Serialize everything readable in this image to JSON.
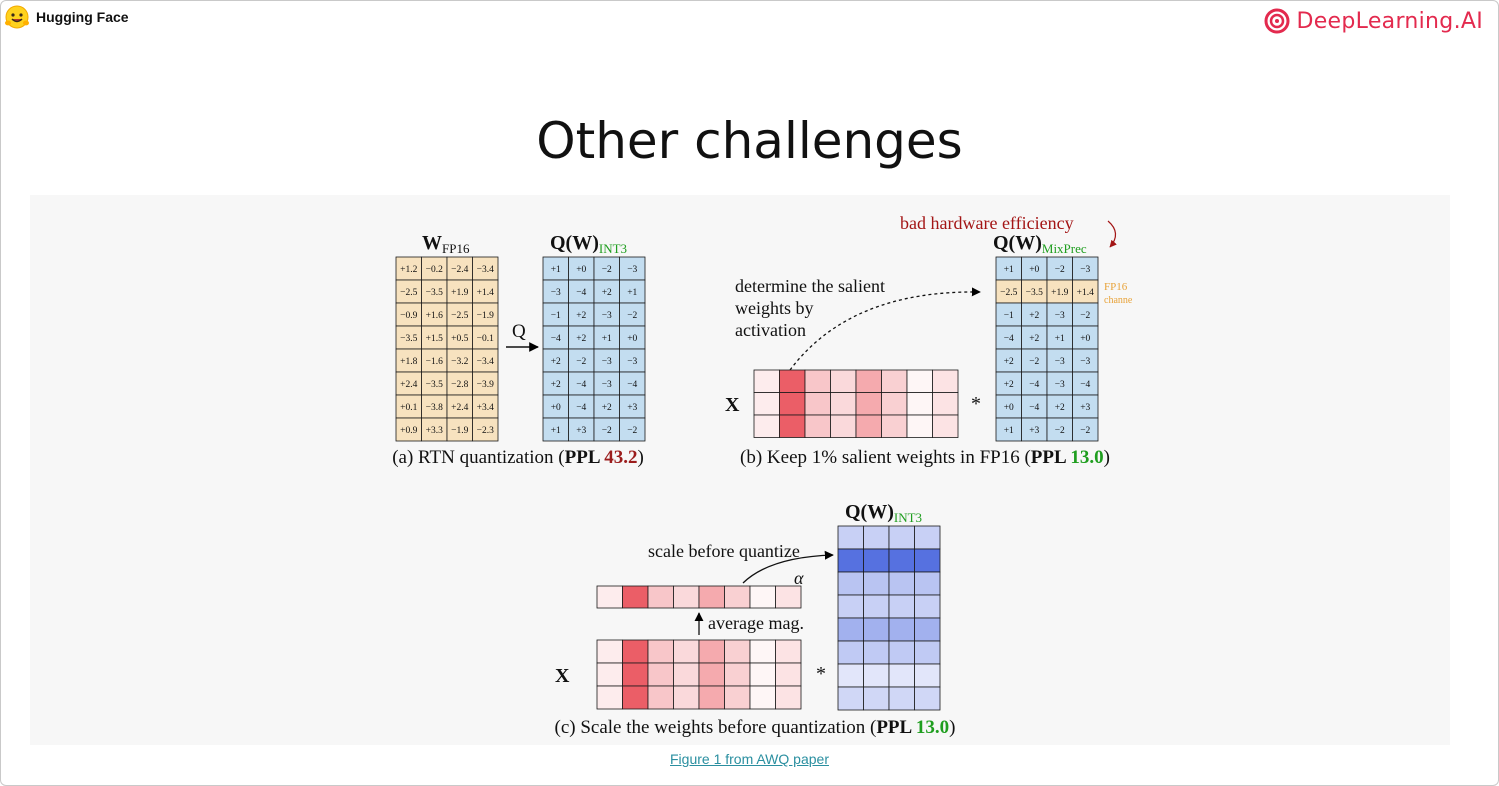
{
  "header": {
    "left_brand": "Hugging Face",
    "right_brand": "DeepLearning.AI",
    "right_brand_color": "#e32a4e"
  },
  "slide": {
    "title": "Other challenges",
    "source_link": "Figure 1 from AWQ paper"
  },
  "figure": {
    "panel_a": {
      "w_label": "W",
      "w_sub": "FP16",
      "q_label": "Q(W)",
      "q_sub": "INT3",
      "arrow_label": "Q",
      "fp16_matrix": [
        [
          "+1.2",
          "−0.2",
          "−2.4",
          "−3.4"
        ],
        [
          "−2.5",
          "−3.5",
          "+1.9",
          "+1.4"
        ],
        [
          "−0.9",
          "+1.6",
          "−2.5",
          "−1.9"
        ],
        [
          "−3.5",
          "+1.5",
          "+0.5",
          "−0.1"
        ],
        [
          "+1.8",
          "−1.6",
          "−3.2",
          "−3.4"
        ],
        [
          "+2.4",
          "−3.5",
          "−2.8",
          "−3.9"
        ],
        [
          "+0.1",
          "−3.8",
          "+2.4",
          "+3.4"
        ],
        [
          "+0.9",
          "+3.3",
          "−1.9",
          "−2.3"
        ]
      ],
      "int3_matrix": [
        [
          "+1",
          "+0",
          "−2",
          "−3"
        ],
        [
          "−3",
          "−4",
          "+2",
          "+1"
        ],
        [
          "−1",
          "+2",
          "−3",
          "−2"
        ],
        [
          "−4",
          "+2",
          "+1",
          "+0"
        ],
        [
          "+2",
          "−2",
          "−3",
          "−3"
        ],
        [
          "+2",
          "−4",
          "−3",
          "−4"
        ],
        [
          "+0",
          "−4",
          "+2",
          "+3"
        ],
        [
          "+1",
          "+3",
          "−2",
          "−2"
        ]
      ],
      "caption_prefix": "(a) RTN quantization (",
      "caption_ppl": "PPL",
      "caption_value": "43.2",
      "caption_suffix": ")",
      "caption_value_color": "#9b1c1c"
    },
    "panel_b": {
      "efficiency_note": "bad hardware efficiency",
      "q_label": "Q(W)",
      "q_sub": "MixPrec",
      "salient_text": [
        "determine the salient",
        "weights by",
        "activation"
      ],
      "x_label": "X",
      "times": "*",
      "fp16_tag": "FP16",
      "channel_tag": "channe",
      "matrix": [
        [
          "+1",
          "+0",
          "−2",
          "−3"
        ],
        [
          "−2.5",
          "−3.5",
          "+1.9",
          "+1.4"
        ],
        [
          "−1",
          "+2",
          "−3",
          "−2"
        ],
        [
          "−4",
          "+2",
          "+1",
          "+0"
        ],
        [
          "+2",
          "−2",
          "−3",
          "−3"
        ],
        [
          "+2",
          "−4",
          "−3",
          "−4"
        ],
        [
          "+0",
          "−4",
          "+2",
          "+3"
        ],
        [
          "+1",
          "+3",
          "−2",
          "−2"
        ]
      ],
      "activation_intensity": [
        0.1,
        0.85,
        0.3,
        0.2,
        0.45,
        0.25,
        0.05,
        0.15
      ],
      "caption_prefix": "(b) Keep 1% salient weights in FP16 (",
      "caption_ppl": "PPL",
      "caption_value": "13.0",
      "caption_suffix": ")",
      "caption_value_color": "#1f9e1f"
    },
    "panel_c": {
      "q_label": "Q(W)",
      "q_sub": "INT3",
      "scale_text": "scale before quantize",
      "alpha": "α",
      "avg_text": "average mag.",
      "x_label": "X",
      "times": "*",
      "activation_intensity": [
        0.1,
        0.85,
        0.3,
        0.2,
        0.45,
        0.25,
        0.05,
        0.15
      ],
      "weight_row_intensity": [
        0.25,
        1.0,
        0.35,
        0.25,
        0.5,
        0.3,
        0.08,
        0.2
      ],
      "caption_prefix": "(c) Scale the weights before quantization (",
      "caption_ppl": "PPL",
      "caption_value": "13.0",
      "caption_suffix": ")",
      "caption_value_color": "#1f9e1f"
    },
    "colors": {
      "fp16_cell": "#f7e2bf",
      "int_cell": "#c3ddf0",
      "activation": "#e8414c",
      "weight": "#3b5bdb",
      "note": "#a31515",
      "subscript_green": "#1f9e1f",
      "fp16_tag": "#e8a33a"
    }
  }
}
